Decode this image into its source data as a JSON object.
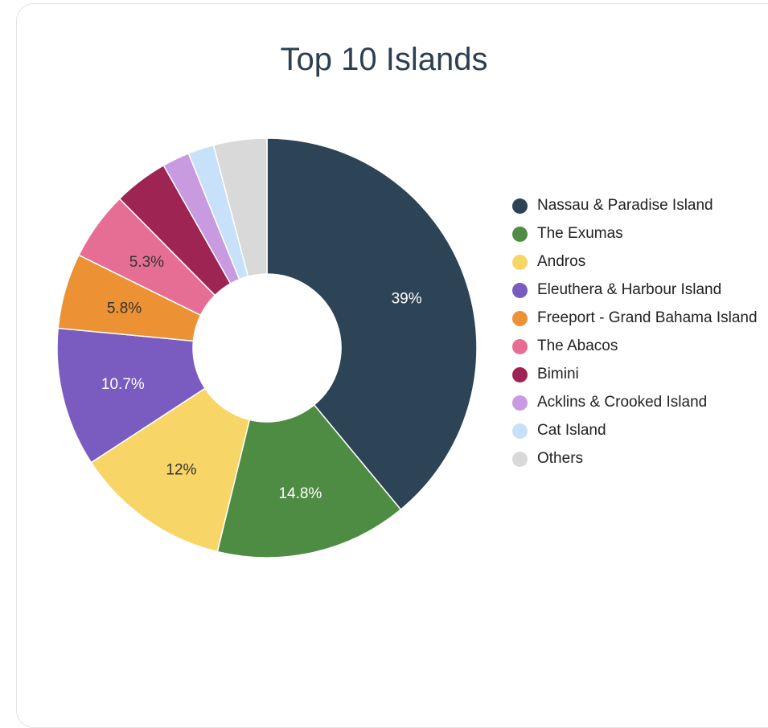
{
  "chart_data": {
    "type": "pie",
    "title": "Top 10 Islands",
    "donut": true,
    "legend_position": "right",
    "categories": [
      "Nassau & Paradise Island",
      "The Exumas",
      "Andros",
      "Eleuthera & Harbour Island",
      "Freeport - Grand Bahama Island",
      "The Abacos",
      "Bimini",
      "Acklins & Crooked Island",
      "Cat Island",
      "Others"
    ],
    "values": [
      39,
      14.8,
      12,
      10.7,
      5.8,
      5.3,
      4.2,
      2.1,
      2.0,
      4.1
    ],
    "data_labels": [
      "39%",
      "14.8%",
      "12%",
      "10.7%",
      "5.8%",
      "5.3%",
      "",
      "",
      "",
      ""
    ],
    "colors": [
      "#2d4456",
      "#4e8c44",
      "#f8d567",
      "#7a5bbf",
      "#ec9234",
      "#e66e94",
      "#9e2453",
      "#c89ae0",
      "#c8e1fa",
      "#d9d9d9"
    ],
    "label_colors": [
      "#ffffff",
      "#ffffff",
      "#333333",
      "#ffffff",
      "#333333",
      "#333333",
      "#ffffff",
      "#333333",
      "#333333",
      "#333333"
    ]
  }
}
